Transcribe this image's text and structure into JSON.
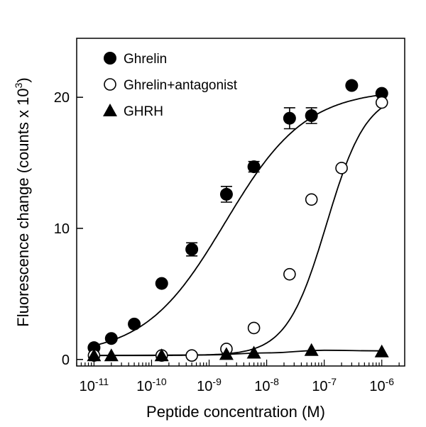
{
  "chart_data": {
    "type": "scatter",
    "xlabel": "Peptide concentration (M)",
    "ylabel": "Fluorescence change (counts x 10",
    "ylabel_exponent": "3",
    "ylabel_close": ")",
    "x_scale": "log",
    "xlim": [
      5e-12,
      2.5e-06
    ],
    "ylim": [
      -0.5,
      24.5
    ],
    "x_ticks": [
      {
        "value": 1e-11,
        "base": "10",
        "exp": "-11"
      },
      {
        "value": 1e-10,
        "base": "10",
        "exp": "-10"
      },
      {
        "value": 1e-09,
        "base": "10",
        "exp": "-9"
      },
      {
        "value": 1e-08,
        "base": "10",
        "exp": "-8"
      },
      {
        "value": 1e-07,
        "base": "10",
        "exp": "-7"
      },
      {
        "value": 1e-06,
        "base": "10",
        "exp": "-6"
      }
    ],
    "y_ticks": [
      {
        "value": 0,
        "label": "0"
      },
      {
        "value": 10,
        "label": "10"
      },
      {
        "value": 20,
        "label": "20"
      }
    ],
    "grid": false,
    "legend_position": "top-left",
    "series": [
      {
        "name": "Ghrelin",
        "marker": "filled-circle",
        "x": [
          1e-11,
          2e-11,
          5e-11,
          1.5e-10,
          5e-10,
          2e-09,
          6e-09,
          2.5e-08,
          6e-08,
          3e-07,
          1e-06
        ],
        "y": [
          0.9,
          1.6,
          2.7,
          5.8,
          8.4,
          12.6,
          14.7,
          18.4,
          18.6,
          20.9,
          20.3
        ],
        "err": [
          0,
          0,
          0,
          0,
          0.5,
          0.6,
          0.4,
          0.8,
          0.6,
          0,
          0
        ],
        "fit": {
          "bottom": 0.3,
          "top": 20.6,
          "ec50": 1.9e-09,
          "hill": 0.62
        }
      },
      {
        "name": "Ghrelin+antagonist",
        "marker": "open-circle",
        "x": [
          1e-11,
          1.5e-10,
          5e-10,
          2e-09,
          6e-09,
          2.5e-08,
          6e-08,
          2e-07,
          1e-06
        ],
        "y": [
          0.3,
          0.3,
          0.3,
          0.8,
          2.4,
          6.5,
          12.2,
          14.6,
          19.6
        ],
        "err": [
          0,
          0,
          0,
          0,
          0,
          0,
          0,
          0,
          0
        ],
        "fit": {
          "bottom": 0.3,
          "top": 20.4,
          "ec50": 1.1e-07,
          "hill": 1.25
        }
      },
      {
        "name": "GHRH",
        "marker": "filled-triangle",
        "x": [
          1e-11,
          2e-11,
          1.5e-10,
          2e-09,
          6e-09,
          6e-08,
          1e-06
        ],
        "y": [
          0.3,
          0.3,
          0.3,
          0.4,
          0.5,
          0.7,
          0.6
        ],
        "err": [
          0,
          0,
          0,
          0,
          0,
          0,
          0
        ],
        "fit_points": [
          [
            1e-11,
            0.3
          ],
          [
            1e-09,
            0.35
          ],
          [
            1e-08,
            0.5
          ],
          [
            1e-07,
            0.7
          ],
          [
            1e-06,
            0.65
          ]
        ]
      }
    ]
  }
}
